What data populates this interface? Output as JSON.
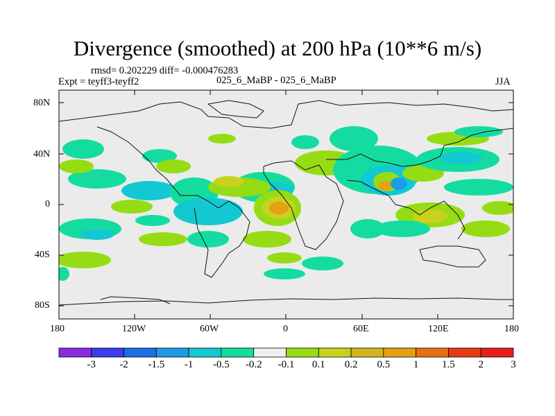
{
  "title": "Divergence (smoothed) at 200 hPa (10**6 m/s)",
  "stats_line": "rmsd= 0.202229 diff= -0.000476283",
  "expt_line": "Expt = teyff3-teyff2",
  "case_line": "025_6_MaBP - 025_6_MaBP",
  "season": "JJA",
  "lat_labels": [
    "80N",
    "40N",
    "0",
    "40S",
    "80S"
  ],
  "lon_labels": [
    "180",
    "120W",
    "60W",
    "0",
    "60E",
    "120E",
    "180"
  ],
  "colorbar": {
    "labels": [
      "-3",
      "-2",
      "-1.5",
      "-1",
      "-0.5",
      "-0.2",
      "-0.1",
      "0.1",
      "0.2",
      "0.5",
      "1",
      "1.5",
      "2",
      "3"
    ],
    "colors": [
      "#8a2be2",
      "#3c3cf0",
      "#1e6ee6",
      "#1e9be6",
      "#14c8d2",
      "#14dca0",
      "#f0f0f0",
      "#96dc14",
      "#c8d21e",
      "#d2b41e",
      "#e6a014",
      "#e66e14",
      "#e63c14",
      "#e61e1e"
    ]
  },
  "field_colors": {
    "background": "#ebebeb",
    "ocean_neutral": "#ebebeb",
    "pos_light": "#96dc14",
    "pos_mid": "#c8d21e",
    "pos_strong": "#d2b41e",
    "pos_max": "#e6a014",
    "neg_light": "#14dca0",
    "neg_mid": "#14c8d2",
    "neg_strong": "#1e9be6",
    "neg_max": "#1e6ee6"
  }
}
